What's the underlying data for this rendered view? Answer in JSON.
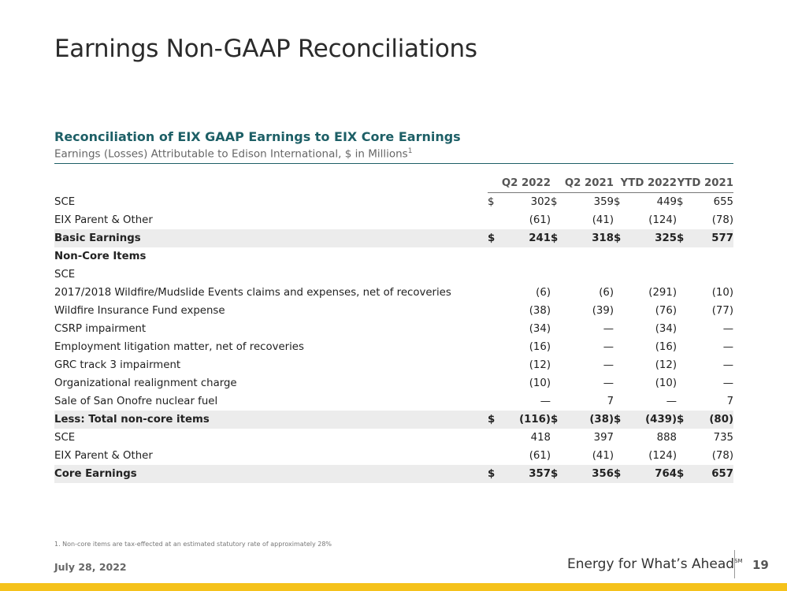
{
  "title": "Earnings Non-GAAP Reconciliations",
  "heading": "Reconciliation of EIX GAAP Earnings to EIX Core Earnings",
  "subheading": "Earnings (Losses) Attributable to Edison International, $ in Millions",
  "subheading_sup": "1",
  "columns": [
    "Q2 2022",
    "Q2 2021",
    "YTD 2022",
    "YTD 2021"
  ],
  "rows": [
    {
      "label": "SCE",
      "cur": "$",
      "values": [
        "302",
        "359",
        "449",
        "655"
      ]
    },
    {
      "label": "EIX Parent & Other",
      "cur": "",
      "values": [
        "(61)",
        "(41)",
        "(124)",
        "(78)"
      ]
    },
    {
      "label": "Basic Earnings",
      "cur": "$",
      "values": [
        "241",
        "318",
        "325",
        "577"
      ]
    },
    {
      "label": "Non-Core Items"
    },
    {
      "label": "SCE"
    },
    {
      "label": "2017/2018 Wildfire/Mudslide Events claims and expenses, net of recoveries",
      "values": [
        "(6)",
        "(6)",
        "(291)",
        "(10)"
      ]
    },
    {
      "label": "Wildfire Insurance Fund expense",
      "values": [
        "(38)",
        "(39)",
        "(76)",
        "(77)"
      ]
    },
    {
      "label": "CSRP impairment",
      "values": [
        "(34)",
        "—",
        "(34)",
        "—"
      ]
    },
    {
      "label": "Employment litigation matter, net of recoveries",
      "values": [
        "(16)",
        "—",
        "(16)",
        "—"
      ]
    },
    {
      "label": "GRC track 3 impairment",
      "values": [
        "(12)",
        "—",
        "(12)",
        "—"
      ]
    },
    {
      "label": "Organizational realignment charge",
      "values": [
        "(10)",
        "—",
        "(10)",
        "—"
      ]
    },
    {
      "label": "Sale of San Onofre nuclear fuel",
      "values": [
        "—",
        "7",
        "—",
        "7"
      ]
    },
    {
      "label": "Less: Total non-core items",
      "cur": "$",
      "values": [
        "(116)",
        "(38)",
        "(439)",
        "(80)"
      ]
    },
    {
      "label": "SCE",
      "values": [
        "418",
        "397",
        "888",
        "735"
      ]
    },
    {
      "label": "EIX Parent & Other",
      "values": [
        "(61)",
        "(41)",
        "(124)",
        "(78)"
      ]
    },
    {
      "label": "Core Earnings",
      "cur": "$",
      "values": [
        "357",
        "356",
        "764",
        "657"
      ]
    }
  ],
  "footnote": "1.   Non-core items are tax-effected at an estimated statutory rate of approximately 28%",
  "date": "July 28, 2022",
  "tagline": "Energy for What’s Ahead",
  "tagline_mark": "SM",
  "page_number": "19",
  "colors": {
    "heading": "#1d5f66",
    "accent_bar": "#f5c21b",
    "shade": "#ececec"
  }
}
